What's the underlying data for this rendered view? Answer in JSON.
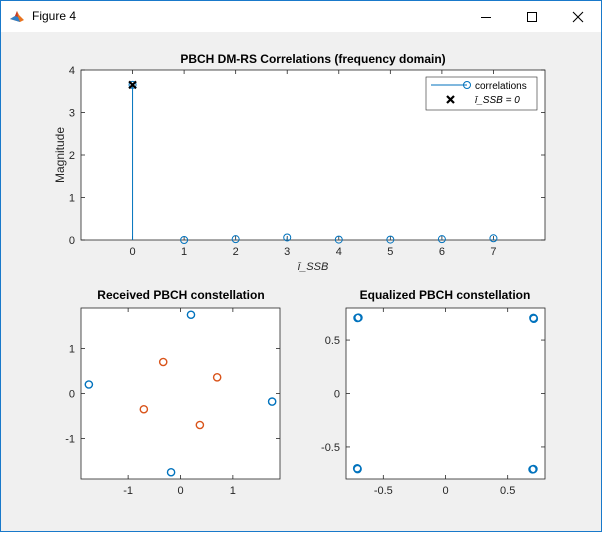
{
  "window": {
    "title": "Figure 4",
    "icon": "matlab-figure-icon",
    "controls": [
      "minimize-icon",
      "maximize-icon",
      "close-icon"
    ]
  },
  "chart_data": [
    {
      "type": "stem",
      "title": "PBCH DM-RS Correlations (frequency domain)",
      "xlabel": "ī_SSB",
      "ylabel": "Magnitude",
      "xlim": [
        -1,
        8
      ],
      "ylim": [
        0,
        4
      ],
      "xticks": [
        0,
        1,
        2,
        3,
        4,
        5,
        6,
        7
      ],
      "yticks": [
        0,
        1,
        2,
        3,
        4
      ],
      "series": [
        {
          "name": "correlations",
          "color": "#0072bd",
          "x": [
            0,
            1,
            2,
            3,
            4,
            5,
            6,
            7
          ],
          "values": [
            3.65,
            0.0,
            0.02,
            0.06,
            0.01,
            0.01,
            0.02,
            0.04
          ]
        },
        {
          "name": "ī_SSB = 0",
          "color": "#000000",
          "x": [
            0
          ],
          "values": [
            3.65
          ]
        }
      ],
      "legend_location": "top-right",
      "grid": false
    },
    {
      "type": "scatter",
      "title": "Received PBCH constellation",
      "xlim": [
        -1.9,
        1.9
      ],
      "ylim": [
        -1.9,
        1.9
      ],
      "xticks": [
        -1,
        0,
        1
      ],
      "yticks": [
        -1,
        0,
        1
      ],
      "series": [
        {
          "color": "#0072bd",
          "points": [
            [
              0.2,
              1.75
            ],
            [
              -1.75,
              0.2
            ],
            [
              1.75,
              -0.18
            ],
            [
              -0.18,
              -1.75
            ]
          ]
        },
        {
          "color": "#d95319",
          "points": [
            [
              -0.33,
              0.7
            ],
            [
              0.7,
              0.36
            ],
            [
              -0.7,
              -0.35
            ],
            [
              0.37,
              -0.7
            ]
          ]
        }
      ],
      "grid": false
    },
    {
      "type": "scatter",
      "title": "Equalized PBCH constellation",
      "xlim": [
        -0.8,
        0.8
      ],
      "ylim": [
        -0.8,
        0.8
      ],
      "xticks": [
        -0.5,
        0,
        0.5
      ],
      "yticks": [
        -0.5,
        0,
        0.5
      ],
      "series": [
        {
          "color": "#0072bd",
          "points": [
            [
              -0.707,
              0.707
            ],
            [
              0.707,
              0.707
            ],
            [
              -0.707,
              -0.707
            ],
            [
              0.707,
              -0.707
            ],
            [
              -0.7,
              0.71
            ],
            [
              0.71,
              0.7
            ],
            [
              -0.71,
              -0.7
            ],
            [
              0.7,
              -0.71
            ]
          ]
        }
      ],
      "grid": false
    }
  ]
}
